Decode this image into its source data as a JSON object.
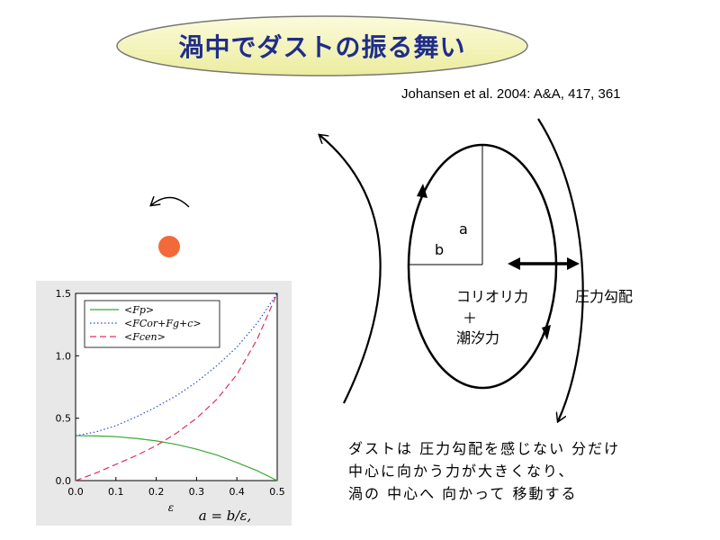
{
  "title": "渦中でダストの振る舞い",
  "citation": "Johansen et al. 2004: A&A, 417, 361",
  "diagram": {
    "label_a": "a",
    "label_b": "b",
    "coriolis": "コリオリ力",
    "plus": "＋",
    "tidal": "潮汐力",
    "pressure_gradient": "圧力勾配",
    "colors": {
      "dust": "#f26a3a",
      "title_fill": "#f3f3c0",
      "title_text": "#1f2d8a"
    }
  },
  "explanation": [
    "ダストは 圧力勾配を感じない 分だけ",
    "中心に向かう力が大きくなり、",
    "渦の 中心へ 向かって 移動する"
  ],
  "chart_data": {
    "type": "line",
    "x": [
      0,
      0.05,
      0.1,
      0.15,
      0.2,
      0.25,
      0.3,
      0.35,
      0.4,
      0.45,
      0.5
    ],
    "series": [
      {
        "name": "<Fp>",
        "color": "#3aa83a",
        "dash": "solid",
        "values": [
          0.36,
          0.358,
          0.352,
          0.338,
          0.318,
          0.29,
          0.252,
          0.205,
          0.145,
          0.08,
          0.0
        ]
      },
      {
        "name": "<FCor+Fg+c>",
        "color": "#2a4dd6",
        "dash": "dotted",
        "values": [
          0.36,
          0.39,
          0.44,
          0.51,
          0.59,
          0.68,
          0.79,
          0.92,
          1.07,
          1.26,
          1.5
        ]
      },
      {
        "name": "<Fcen>",
        "color": "#e0305a",
        "dash": "dashed",
        "values": [
          0.0,
          0.06,
          0.13,
          0.2,
          0.28,
          0.38,
          0.5,
          0.65,
          0.85,
          1.13,
          1.5
        ]
      }
    ],
    "xlim": [
      0,
      0.5
    ],
    "ylim": [
      0,
      1.5
    ],
    "xticks": [
      "0.0",
      "0.1",
      "0.2",
      "0.3",
      "0.4",
      "0.5"
    ],
    "yticks": [
      "0.0",
      "0.5",
      "1.0",
      "1.5"
    ],
    "xlabel": "ε",
    "annotation": "a = b/ε,",
    "legend_position": "top-left"
  }
}
